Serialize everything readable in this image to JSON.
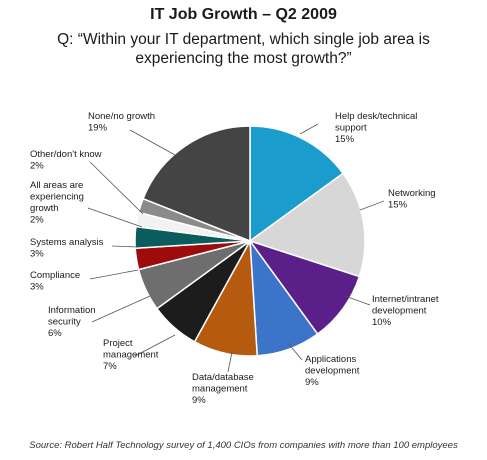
{
  "title": "IT Job Growth – Q2 2009",
  "subtitle_line1": "Q: “Within your IT department, which single job area is",
  "subtitle_line2": "experiencing the most growth?”",
  "source": "Source: Robert Half Technology survey  of 1,400 CIOs from companies with more than 100 employees",
  "chart_data": {
    "type": "pie",
    "title": "IT Job Growth – Q2 2009",
    "slices": [
      {
        "label_lines": [
          "Help desk/technical",
          "support",
          "15%"
        ],
        "value": 15,
        "color": "#1a9ccc"
      },
      {
        "label_lines": [
          "Networking",
          "15%"
        ],
        "value": 15,
        "color": "#d7d7d7"
      },
      {
        "label_lines": [
          "Internet/intranet",
          "development",
          "10%"
        ],
        "value": 10,
        "color": "#5b1f8a"
      },
      {
        "label_lines": [
          "Applications",
          "development",
          "9%"
        ],
        "value": 9,
        "color": "#3b74c8"
      },
      {
        "label_lines": [
          "Data/database",
          "management",
          "9%"
        ],
        "value": 9,
        "color": "#b65a10"
      },
      {
        "label_lines": [
          "Project",
          "management",
          "7%"
        ],
        "value": 7,
        "color": "#1c1c1c"
      },
      {
        "label_lines": [
          "Information",
          "security",
          "6%"
        ],
        "value": 6,
        "color": "#6e6e6e"
      },
      {
        "label_lines": [
          "Compliance",
          "3%"
        ],
        "value": 3,
        "color": "#9e0b0b"
      },
      {
        "label_lines": [
          "Systems analysis",
          "3%"
        ],
        "value": 3,
        "color": "#0b5c5c"
      },
      {
        "label_lines": [
          "All areas are",
          "experiencing",
          "growth",
          "2%"
        ],
        "value": 2,
        "color": "#f2f2f2"
      },
      {
        "label_lines": [
          "Other/don't know",
          "2%"
        ],
        "value": 2,
        "color": "#8a8a8a"
      },
      {
        "label_lines": [
          "None/no growth",
          "19%"
        ],
        "value": 19,
        "color": "#444444"
      }
    ]
  }
}
